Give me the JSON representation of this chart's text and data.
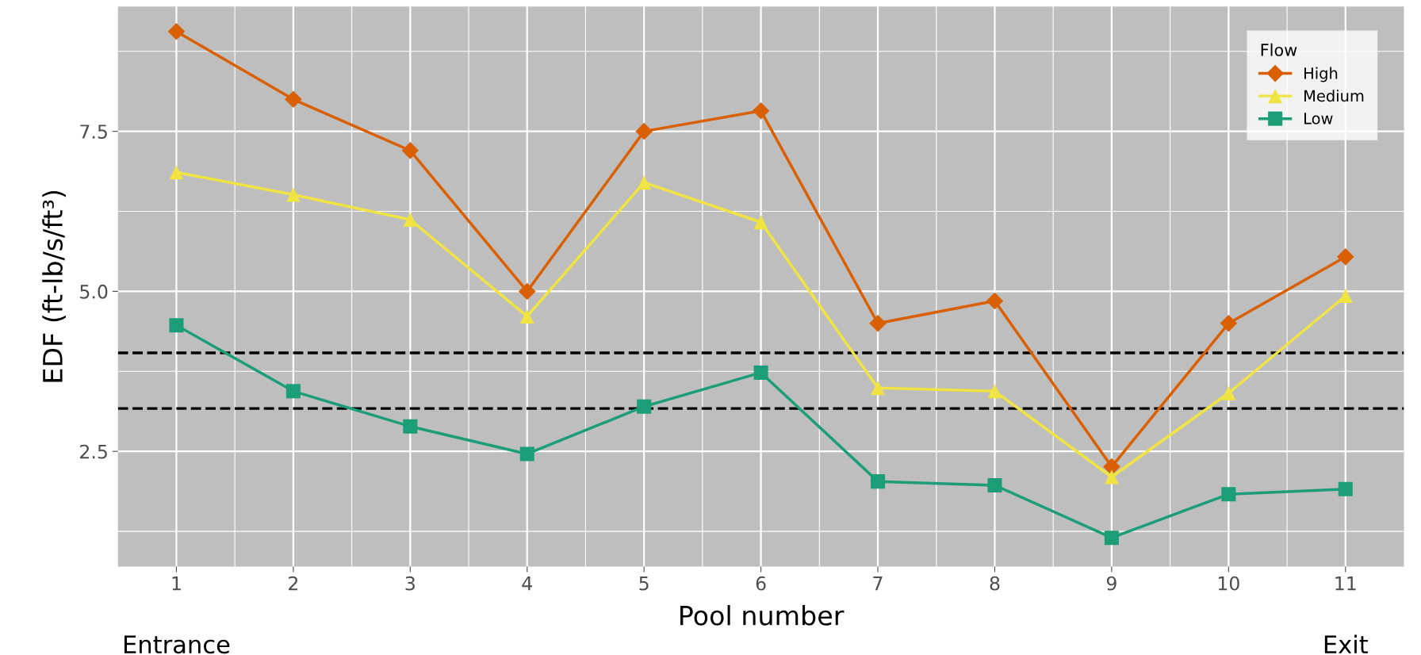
{
  "chart_data": {
    "type": "line",
    "xlabel": "Pool number",
    "ylabel": "EDF (ft-lb/s/ft³)",
    "legend_title": "Flow",
    "categories": [
      "1",
      "2",
      "3",
      "4",
      "5",
      "6",
      "7",
      "8",
      "9",
      "10",
      "11"
    ],
    "series": [
      {
        "name": "High",
        "color": "#d95f02",
        "marker": "diamond",
        "values": [
          9.06,
          8.0,
          7.2,
          5.0,
          7.5,
          7.82,
          4.5,
          4.85,
          2.26,
          4.5,
          5.54
        ]
      },
      {
        "name": "Medium",
        "color": "#f0e442",
        "marker": "triangle",
        "values": [
          6.86,
          6.51,
          6.12,
          4.61,
          6.7,
          6.08,
          3.49,
          3.44,
          2.1,
          3.41,
          4.93
        ]
      },
      {
        "name": "Low",
        "color": "#1b9e77",
        "marker": "square",
        "values": [
          4.47,
          3.44,
          2.89,
          2.46,
          3.2,
          3.73,
          2.03,
          1.97,
          1.15,
          1.83,
          1.91
        ]
      }
    ],
    "ylim": [
      0.7,
      9.45
    ],
    "yticks": [
      2.5,
      {
        "value": 5,
        "label": "5.0"
      },
      7.5
    ],
    "ref_lines": [
      {
        "axis": "y",
        "value": 4.04,
        "color": "#000000",
        "line_style": "dashed"
      },
      {
        "axis": "y",
        "value": 3.17,
        "color": "#000000",
        "line_style": "dashed"
      }
    ],
    "annotations": [
      "Entrance",
      "Exit"
    ],
    "grid": true,
    "legend": "top right",
    "line_style": "solid"
  }
}
